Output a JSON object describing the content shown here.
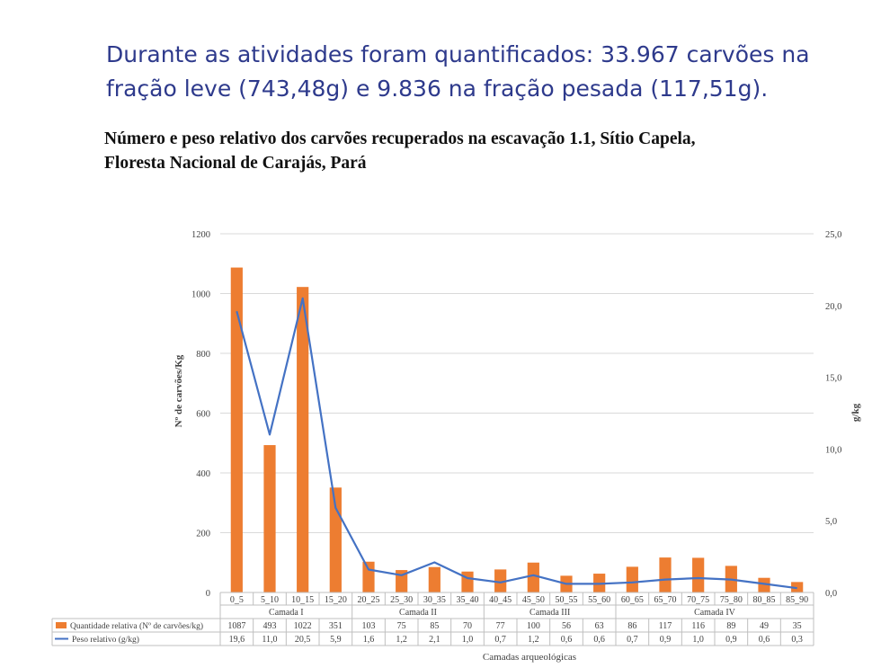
{
  "slide": {
    "heading_line1": "Durante as atividades foram quantificados: 33.967 carvões na",
    "heading_line2": "fração leve (743,48g) e 9.836 na fração pesada (117,51g)."
  },
  "figure": {
    "caption_line1": "Número e peso relativo dos carvões recuperados na escavação 1.1, Sítio Capela,",
    "caption_line2": "Floresta Nacional de Carajás, Pará"
  },
  "chart_data": {
    "type": "bar",
    "title": "",
    "categories": [
      "0_5",
      "5_10",
      "10_15",
      "15_20",
      "20_25",
      "25_30",
      "30_35",
      "35_40",
      "40_45",
      "45_50",
      "50_55",
      "55_60",
      "60_65",
      "65_70",
      "70_75",
      "75_80",
      "80_85",
      "85_90"
    ],
    "series": [
      {
        "name": "Quantidade relativa (Nº de carvões/kg)",
        "type": "bar",
        "axis": "left",
        "color": "#ed7d31",
        "values": [
          1087,
          493,
          1022,
          351,
          103,
          75,
          85,
          70,
          77,
          100,
          56,
          63,
          86,
          117,
          116,
          89,
          49,
          35
        ],
        "labels": [
          "1087",
          "493",
          "1022",
          "351",
          "103",
          "75",
          "85",
          "70",
          "77",
          "100",
          "56",
          "63",
          "86",
          "117",
          "116",
          "89",
          "49",
          "35"
        ]
      },
      {
        "name": "Peso relativo (g/kg)",
        "type": "line",
        "axis": "right",
        "color": "#4472c4",
        "values": [
          19.6,
          11.0,
          20.5,
          5.9,
          1.6,
          1.2,
          2.1,
          1.0,
          0.7,
          1.2,
          0.6,
          0.6,
          0.7,
          0.9,
          1.0,
          0.9,
          0.6,
          0.3
        ],
        "labels": [
          "19,6",
          "11,0",
          "20,5",
          "5,9",
          "1,6",
          "1,2",
          "2,1",
          "1,0",
          "0,7",
          "1,2",
          "0,6",
          "0,6",
          "0,7",
          "0,9",
          "1,0",
          "0,9",
          "0,6",
          "0,3"
        ]
      }
    ],
    "groups": [
      {
        "name": "Camada I",
        "categories": [
          "0_5",
          "5_10",
          "10_15",
          "15_20"
        ]
      },
      {
        "name": "Camada II",
        "categories": [
          "20_25",
          "25_30",
          "30_35",
          "35_40"
        ]
      },
      {
        "name": "Camada III",
        "categories": [
          "40_45",
          "45_50",
          "50_55",
          "55_60"
        ]
      },
      {
        "name": "Camada IV",
        "categories": [
          "60_65",
          "65_70",
          "70_75",
          "75_80",
          "80_85",
          "85_90"
        ]
      }
    ],
    "xlabel": "Camadas arqueológicas",
    "ylabel": "Nº de carvões/Kg",
    "ylabel_right": "g/kg",
    "ylim": [
      0,
      1200
    ],
    "ylim_right": [
      0,
      25
    ],
    "yticks": [
      "0",
      "200",
      "400",
      "600",
      "800",
      "1000",
      "1200"
    ],
    "yticks_right": [
      "0,0",
      "5,0",
      "10,0",
      "15,0",
      "20,0",
      "25,0"
    ],
    "grid": true,
    "legend": "data table below x-axis"
  }
}
